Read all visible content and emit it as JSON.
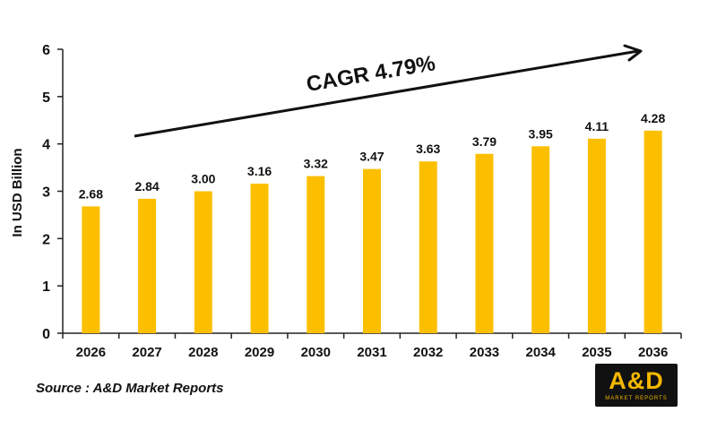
{
  "chart_data": {
    "type": "bar",
    "categories": [
      "2026",
      "2027",
      "2028",
      "2029",
      "2030",
      "2031",
      "2032",
      "2033",
      "2034",
      "2035",
      "2036"
    ],
    "values": [
      2.68,
      2.84,
      3.0,
      3.16,
      3.32,
      3.47,
      3.63,
      3.79,
      3.95,
      4.11,
      4.28
    ],
    "value_labels": [
      "2.68",
      "2.84",
      "3.00",
      "3.16",
      "3.32",
      "3.47",
      "3.63",
      "3.79",
      "3.95",
      "4.11",
      "4.28"
    ],
    "ylabel": "In USD Billion",
    "ylim": [
      0,
      6
    ],
    "yticks": [
      "0",
      "1",
      "2",
      "3",
      "4",
      "5",
      "6"
    ],
    "grid": false,
    "bar_color": "#fcbf00",
    "annotation": "CAGR 4.79%"
  },
  "footer": {
    "source": "Source : A&D Market Reports",
    "logo_main": "A&D",
    "logo_sub": "MARKET REPORTS"
  }
}
